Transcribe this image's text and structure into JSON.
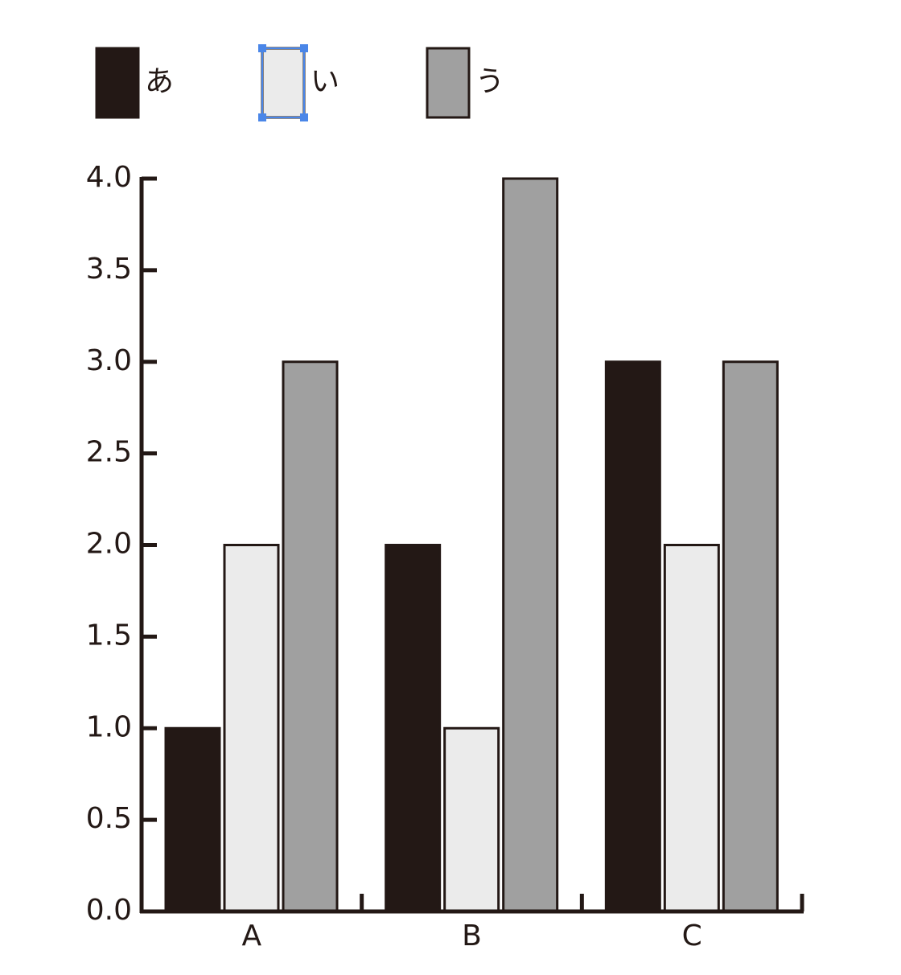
{
  "chart_data": {
    "type": "bar",
    "categories": [
      "A",
      "B",
      "C"
    ],
    "series": [
      {
        "name": "あ",
        "color": "#231815",
        "values": [
          1,
          2,
          3
        ]
      },
      {
        "name": "い",
        "color": "#ebebeb",
        "values": [
          2,
          1,
          2
        ]
      },
      {
        "name": "う",
        "color": "#a0a0a0",
        "values": [
          3,
          4,
          3
        ]
      }
    ],
    "ylim": [
      0,
      4
    ],
    "yticks": [
      {
        "value": 0,
        "label": "0.0"
      },
      0.5,
      {
        "value": 1,
        "label": "1.0"
      },
      1.5,
      {
        "value": 2,
        "label": "2.0"
      },
      2.5,
      {
        "value": 3,
        "label": "3.0"
      },
      3.5,
      {
        "value": 4,
        "label": "4.0"
      }
    ],
    "legend": "top-left"
  }
}
